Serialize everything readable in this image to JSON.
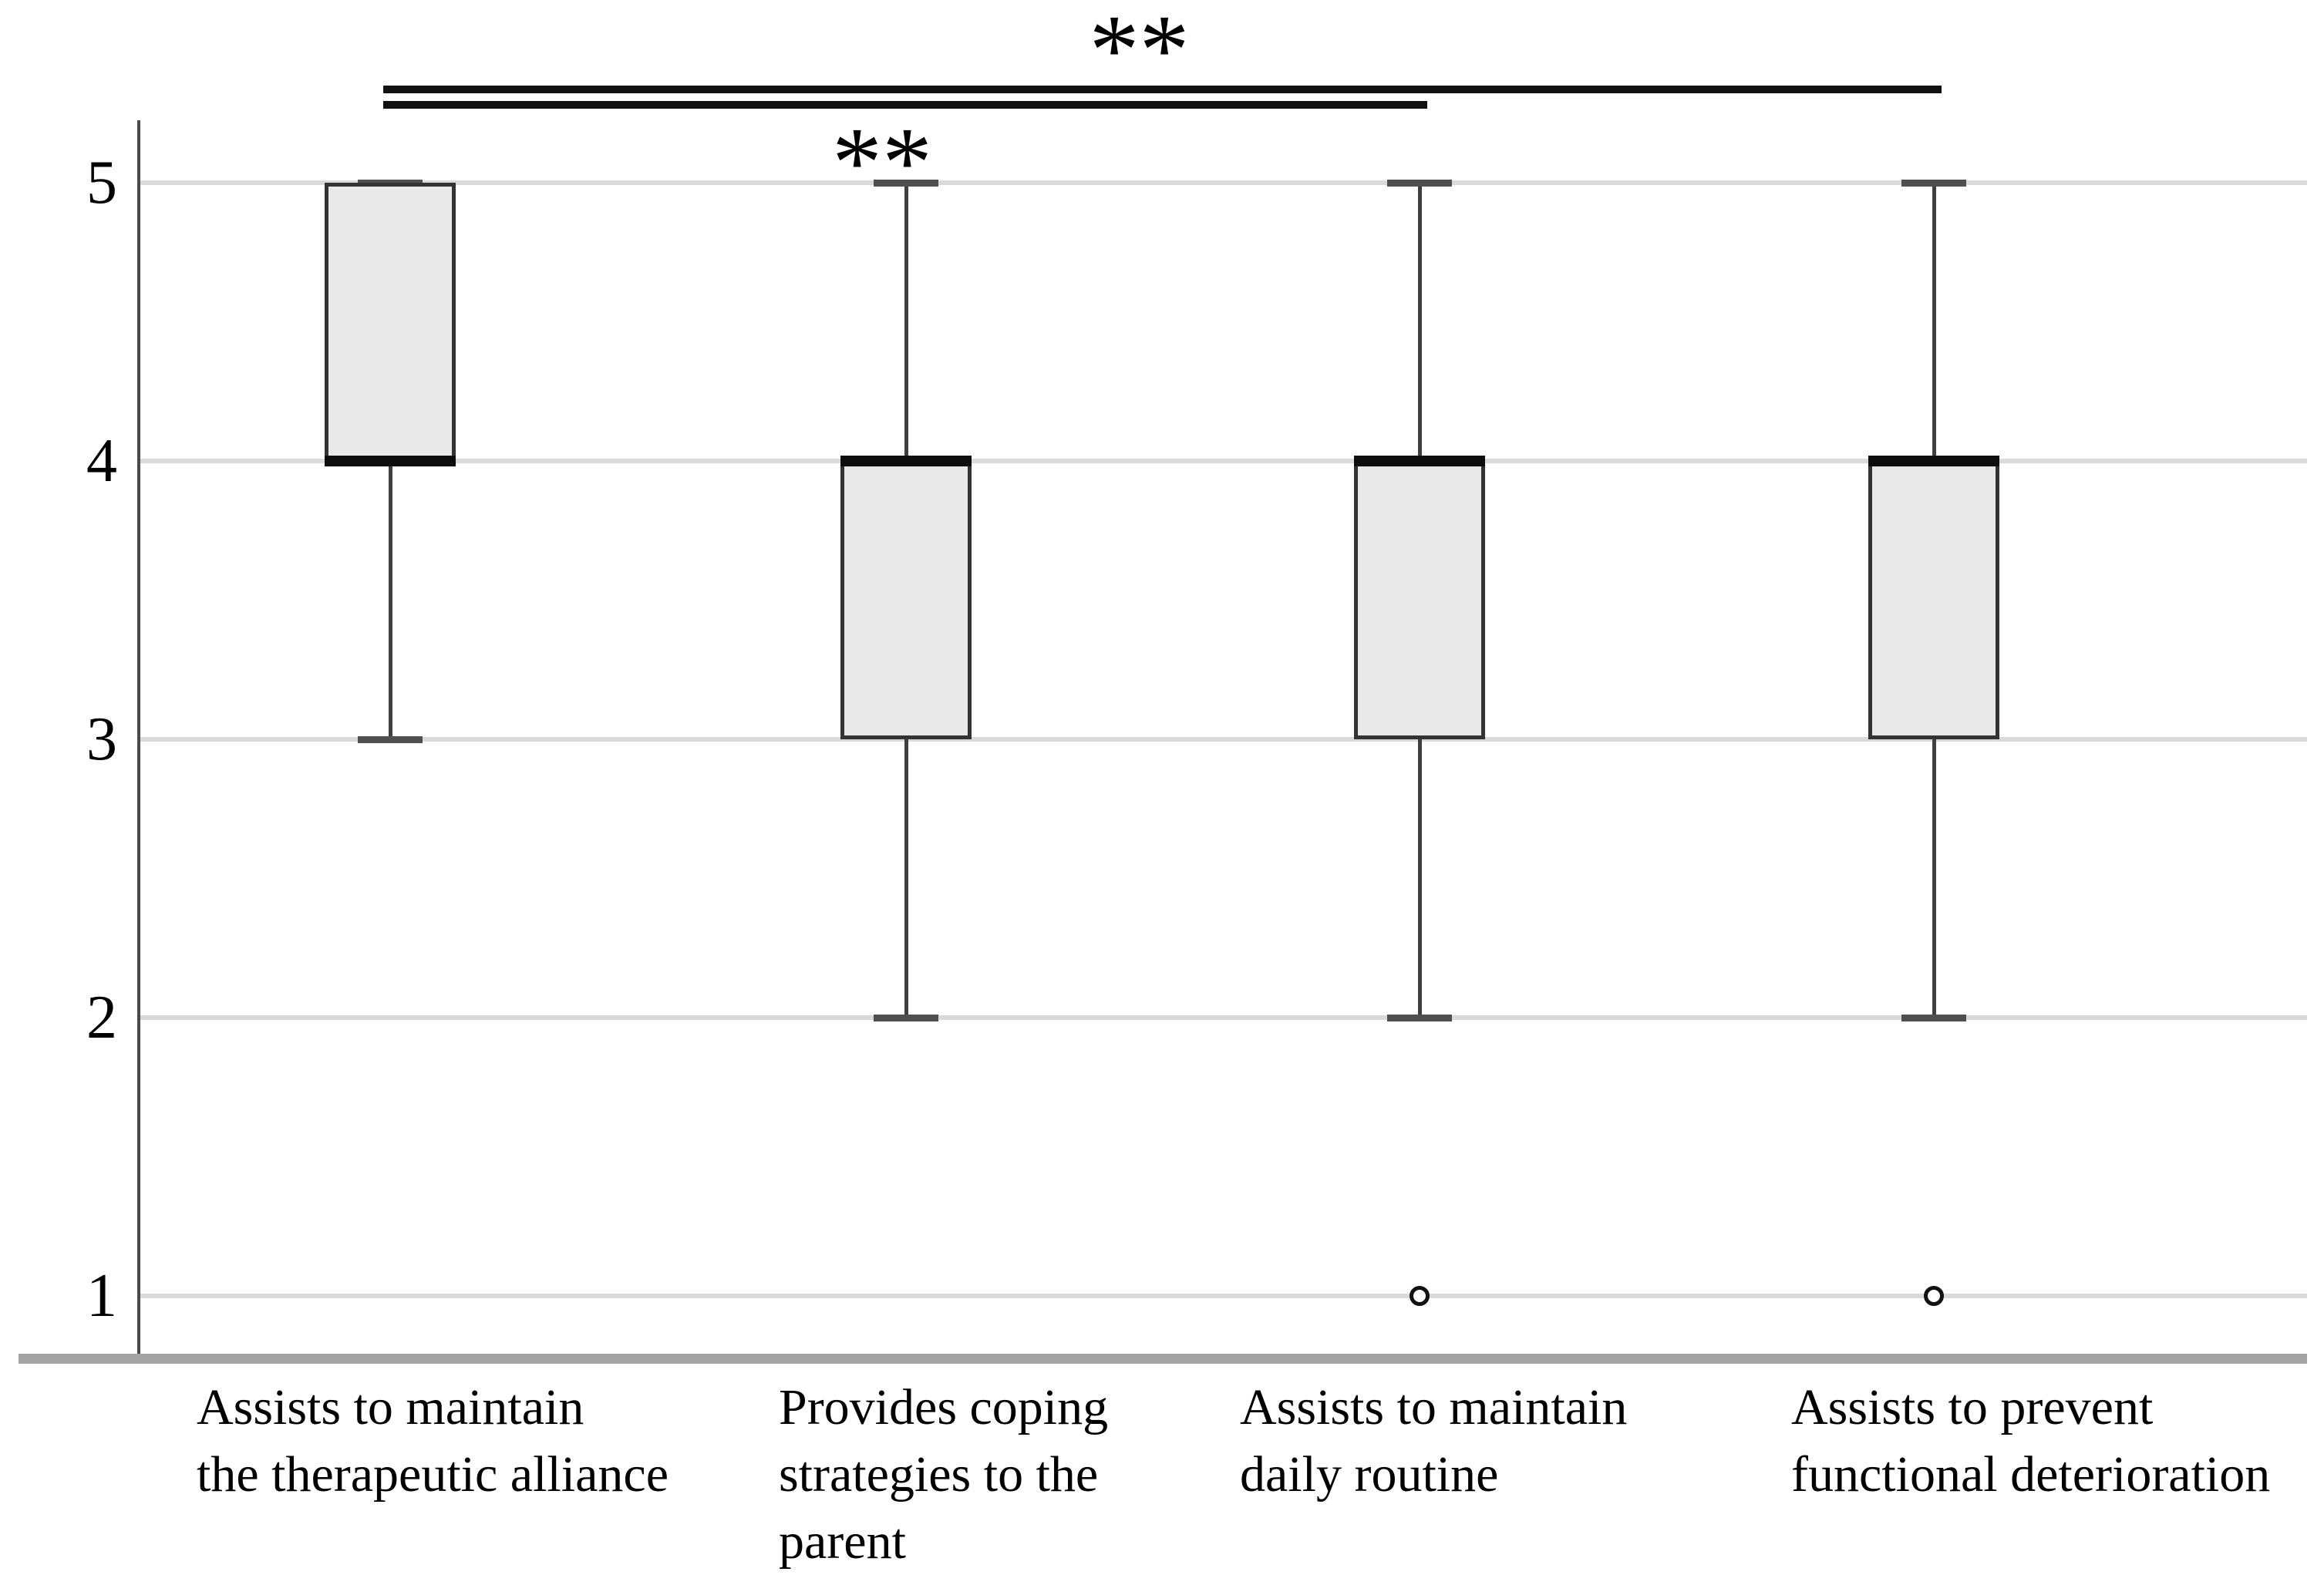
{
  "chart_data": {
    "type": "boxplot",
    "title": "",
    "xlabel": "",
    "ylabel": "",
    "y_axis": {
      "min": 1,
      "max": 5,
      "tick_labels": [
        "5",
        "4",
        "3",
        "2",
        "1"
      ],
      "tick_values": [
        5,
        4,
        3,
        2,
        1
      ]
    },
    "grid": true,
    "legend": "none",
    "categories": [
      {
        "label": "Assists to maintain the therapeutic alliance",
        "label_lines": [
          "Assists to maintain",
          "the therapeutic alliance"
        ],
        "q1": 4,
        "median": 4,
        "q3": 5,
        "whisker_low": 3,
        "whisker_high": 5,
        "outliers": []
      },
      {
        "label": "Provides coping strategies to the parent",
        "label_lines": [
          "Provides coping",
          "strategies to the",
          "parent"
        ],
        "q1": 3,
        "median": 4,
        "q3": 4,
        "whisker_low": 2,
        "whisker_high": 5,
        "outliers": []
      },
      {
        "label": "Assists to maintain daily routine",
        "label_lines": [
          "Assists to maintain",
          "daily routine"
        ],
        "q1": 3,
        "median": 4,
        "q3": 4,
        "whisker_low": 2,
        "whisker_high": 5,
        "outliers": [
          1
        ]
      },
      {
        "label": "Assists to prevent functional deterioration",
        "label_lines": [
          "Assists to prevent",
          "functional deterioration"
        ],
        "q1": 3,
        "median": 4,
        "q3": 4,
        "whisker_low": 2,
        "whisker_high": 5,
        "outliers": [
          1
        ]
      }
    ],
    "significance": [
      {
        "from_category": 0,
        "to_category": 3,
        "label": "**",
        "label_position": "above"
      },
      {
        "from_category": 0,
        "to_category": 2,
        "label": "**",
        "label_position": "below"
      }
    ],
    "colors": {
      "box_fill": "#e9e9e9",
      "box_border": "#333333",
      "median_line": "#0d0d0d",
      "whisker": "#3f3f3f",
      "whisker_cap": "#4f4f4f",
      "gridline": "#dadada",
      "x_axis_line": "#a3a3a3",
      "y_axis_line": "#4a4a4a",
      "significance_line": "#111111",
      "text": "#000000"
    }
  }
}
